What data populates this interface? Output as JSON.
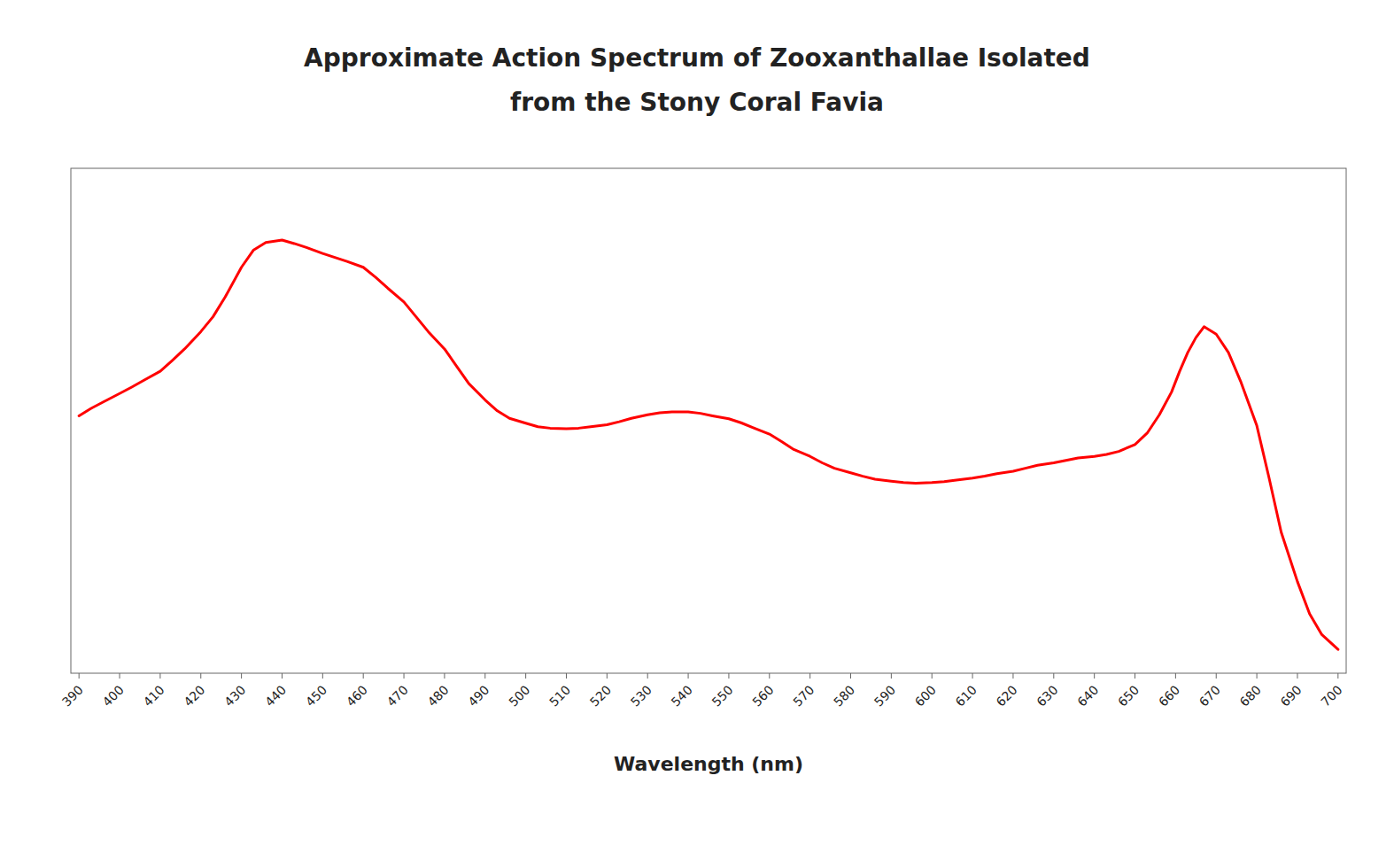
{
  "chart_data": {
    "type": "line",
    "title": [
      "Approximate Action Spectrum of Zooxanthallae Isolated",
      "from the Stony Coral Favia"
    ],
    "x_label": "Wavelength (nm)",
    "color": "#FF0000",
    "xlim": [
      388,
      702
    ],
    "ylim": [
      0.0,
      1.02
    ],
    "xticks": [
      390,
      400,
      410,
      420,
      430,
      440,
      450,
      460,
      470,
      480,
      490,
      500,
      510,
      520,
      530,
      540,
      550,
      560,
      570,
      580,
      590,
      600,
      610,
      620,
      630,
      640,
      650,
      660,
      670,
      680,
      690,
      700
    ],
    "yticks": [],
    "tick_labels": "x",
    "grid": false,
    "x": [
      390,
      393,
      396,
      400,
      403,
      406,
      410,
      413,
      416,
      420,
      423,
      426,
      430,
      433,
      436,
      440,
      443,
      446,
      450,
      453,
      456,
      460,
      463,
      466,
      470,
      473,
      476,
      480,
      483,
      486,
      490,
      493,
      496,
      500,
      503,
      506,
      510,
      513,
      516,
      520,
      523,
      526,
      530,
      533,
      536,
      540,
      543,
      546,
      550,
      553,
      556,
      560,
      563,
      566,
      570,
      573,
      576,
      580,
      583,
      586,
      590,
      593,
      596,
      600,
      603,
      606,
      610,
      613,
      616,
      620,
      623,
      626,
      630,
      633,
      636,
      640,
      643,
      646,
      650,
      653,
      656,
      659,
      661,
      663,
      665,
      667,
      670,
      673,
      676,
      680,
      683,
      686,
      690,
      693,
      696,
      700
    ],
    "values": [
      0.52,
      0.535,
      0.548,
      0.565,
      0.578,
      0.592,
      0.61,
      0.632,
      0.655,
      0.69,
      0.72,
      0.76,
      0.82,
      0.855,
      0.87,
      0.875,
      0.868,
      0.86,
      0.848,
      0.84,
      0.832,
      0.82,
      0.8,
      0.778,
      0.75,
      0.72,
      0.69,
      0.655,
      0.62,
      0.585,
      0.552,
      0.53,
      0.515,
      0.505,
      0.498,
      0.495,
      0.494,
      0.495,
      0.498,
      0.502,
      0.508,
      0.515,
      0.522,
      0.526,
      0.528,
      0.528,
      0.525,
      0.52,
      0.514,
      0.506,
      0.496,
      0.483,
      0.468,
      0.452,
      0.438,
      0.425,
      0.414,
      0.405,
      0.398,
      0.392,
      0.388,
      0.385,
      0.384,
      0.385,
      0.387,
      0.39,
      0.394,
      0.398,
      0.403,
      0.408,
      0.414,
      0.42,
      0.425,
      0.43,
      0.435,
      0.438,
      0.442,
      0.448,
      0.462,
      0.485,
      0.522,
      0.568,
      0.61,
      0.648,
      0.678,
      0.7,
      0.685,
      0.648,
      0.59,
      0.5,
      0.395,
      0.285,
      0.185,
      0.12,
      0.078,
      0.048
    ]
  }
}
